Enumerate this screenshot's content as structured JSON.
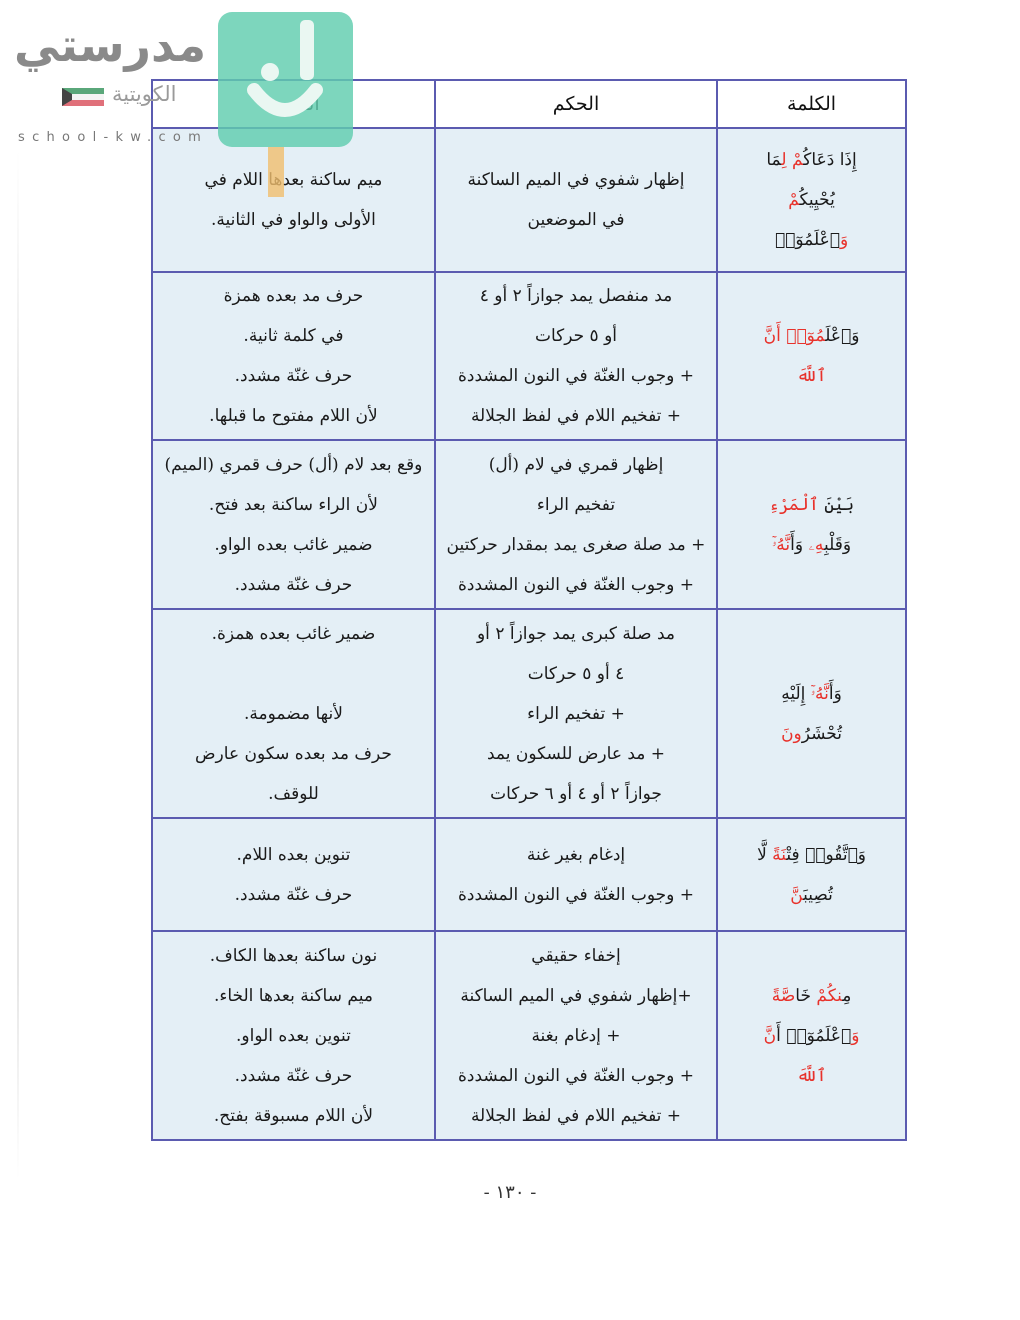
{
  "watermark": {
    "brand": "مدرستي",
    "country": "الكويتية",
    "url": "school-kw.com",
    "flag_colors": [
      "#007a3d",
      "#ffffff",
      "#ce1126",
      "#000000"
    ],
    "badge_color": "#60cdaf"
  },
  "table": {
    "headers": {
      "word": "الكلمة",
      "rule": "الحكم",
      "reason": "السبب"
    },
    "rows": [
      {
        "word": [
          [
            {
              "t": "إِذَا دَعَاكُ",
              "red": false
            },
            {
              "t": "مْ",
              "red": true
            },
            {
              "t": " لِ",
              "red": true
            },
            {
              "t": "مَا",
              "red": false
            }
          ],
          [
            {
              "t": "يُحْيِيكُ",
              "red": false
            },
            {
              "t": "مْ",
              "red": true
            }
          ],
          [
            {
              "t": "وَ",
              "red": true
            },
            {
              "t": "ٱعْلَمُوٓا۟",
              "red": false
            }
          ]
        ],
        "rule": [
          "إظهار شفوي في الميم الساكنة",
          "في الموضعين"
        ],
        "reason": [
          "ميم ساكنة بعدها اللام في",
          "الأولى والواو في الثانية."
        ]
      },
      {
        "word": [
          [
            {
              "t": "وَٱعْلَ",
              "red": false
            },
            {
              "t": "مُوٓا۟",
              "red": true
            },
            {
              "t": " أَنَّ",
              "red": true
            }
          ],
          [
            {
              "t": "ٱللَّهَ",
              "red": true
            }
          ]
        ],
        "rule": [
          "مد منفصل يمد جوازاً ٢ أو ٤",
          "أو ٥ حركات",
          "+ وجوب الغنّة في النون المشددة",
          "+ تفخيم اللام في لفظ الجلالة"
        ],
        "reason": [
          "حرف مد بعده همزة",
          "في كلمة ثانية.",
          "حرف غنّة مشدد.",
          "لأن اللام مفتوح ما قبلها."
        ]
      },
      {
        "word": [
          [
            {
              "t": "بَيْنَ ",
              "red": false
            },
            {
              "t": "ٱلْمَرْءِ",
              "red": true
            }
          ],
          [
            {
              "t": "وَقَلْبِ",
              "red": false
            },
            {
              "t": "هِۦ",
              "red": true
            },
            {
              "t": " وَأَ",
              "red": false
            },
            {
              "t": "نَّهُۥٓ",
              "red": true
            }
          ]
        ],
        "rule": [
          "إظهار قمري في لام (أل)",
          "تفخيم الراء",
          "+ مد صلة صغرى يمد بمقدار حركتين",
          "+ وجوب الغنّة في النون المشددة"
        ],
        "reason": [
          "وقع بعد لام (أل) حرف قمري (الميم)",
          "لأن الراء ساكنة بعد فتح.",
          "ضمير غائب بعده الواو.",
          "حرف غنّة مشدد."
        ]
      },
      {
        "word": [
          [
            {
              "t": "وَأَ",
              "red": false
            },
            {
              "t": "نَّهُۥٓ",
              "red": true
            },
            {
              "t": " إِلَيْهِ",
              "red": false
            }
          ],
          [
            {
              "t": "تُحْشَرُ",
              "red": false
            },
            {
              "t": "ونَ",
              "red": true
            }
          ]
        ],
        "rule": [
          "مد صلة كبرى يمد جوازاً ٢ أو",
          "٤ أو ٥ حركات",
          "+ تفخيم الراء",
          "+ مد عارض للسكون يمد",
          "جوازاً ٢ أو ٤ أو ٦ حركات"
        ],
        "reason": [
          "ضمير غائب بعده همزة.",
          "",
          "لأنها مضمومة.",
          "حرف مد بعده سكون عارض",
          "للوقف."
        ]
      },
      {
        "word": [
          [
            {
              "t": "وَٱتَّقُوا۟ فِتْ",
              "red": false
            },
            {
              "t": "نَةً",
              "red": true
            },
            {
              "t": " لَّا",
              "red": false
            }
          ],
          [
            {
              "t": "تُصِيبَ",
              "red": false
            },
            {
              "t": "نَّ",
              "red": true
            }
          ]
        ],
        "rule": [
          "إدغام بغير غنة",
          "+ وجوب الغنّة في النون المشددة"
        ],
        "reason": [
          "تنوين بعده اللام.",
          "حرف غنّة مشدد."
        ]
      },
      {
        "word": [
          [
            {
              "t": "مِ",
              "red": false
            },
            {
              "t": "نكُمْ",
              "red": true
            },
            {
              "t": " خَا",
              "red": false
            },
            {
              "t": "صَّةً",
              "red": true
            }
          ],
          [
            {
              "t": "وَ",
              "red": true
            },
            {
              "t": "ٱعْلَمُوٓا۟ أَ",
              "red": false
            },
            {
              "t": "نَّ",
              "red": true
            }
          ],
          [
            {
              "t": "ٱللَّهَ",
              "red": true
            }
          ]
        ],
        "rule": [
          "إخفاء حقيقي",
          "+إظهار شفوي في الميم الساكنة",
          "+ إدغام بغنة",
          "+ وجوب الغنّة في النون المشددة",
          "+ تفخيم اللام في لفظ الجلالة"
        ],
        "reason": [
          "نون ساكنة بعدها الكاف.",
          "ميم ساكنة بعدها الخاء.",
          "تنوين بعده الواو.",
          "حرف غنّة مشدد.",
          "لأن اللام مسبوقة بفتح."
        ]
      }
    ]
  },
  "page_number": "- ١٣٠ -"
}
